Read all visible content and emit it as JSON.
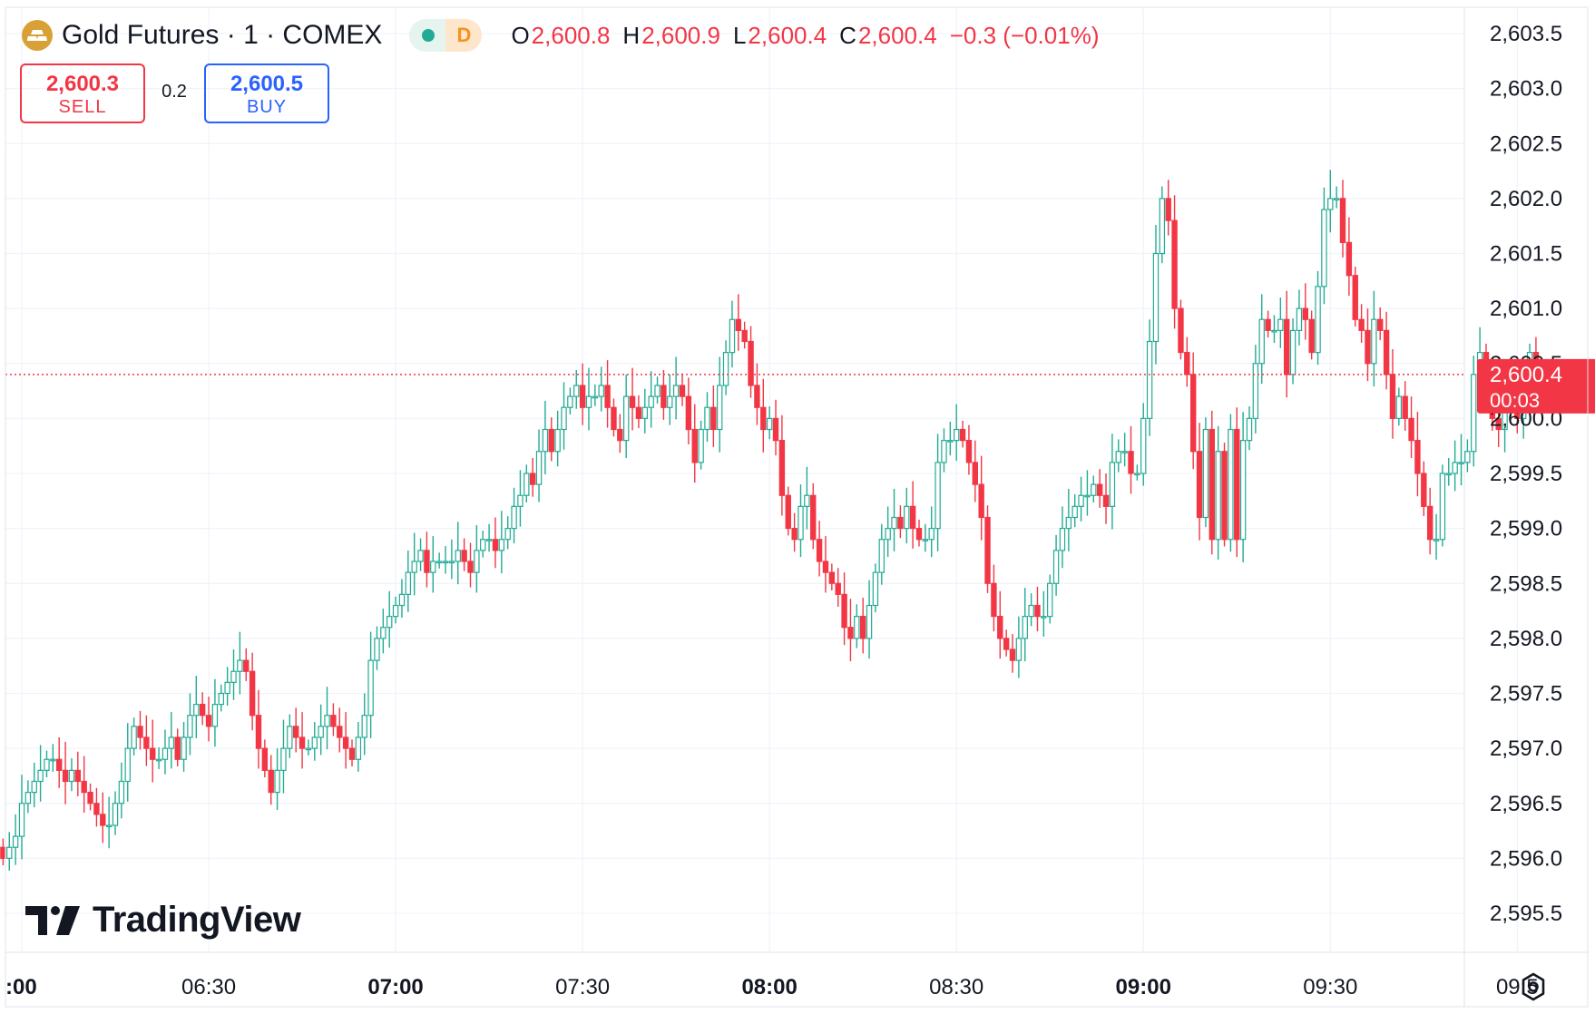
{
  "header": {
    "symbol_title": "Gold Futures · 1 · COMEX",
    "interval_badge": "D",
    "ohlc": [
      {
        "key": "O",
        "value": "2,600.8"
      },
      {
        "key": "H",
        "value": "2,600.9"
      },
      {
        "key": "L",
        "value": "2,600.4"
      },
      {
        "key": "C",
        "value": "2,600.4"
      },
      {
        "key": "",
        "value": "−0.3 (−0.01%)"
      }
    ]
  },
  "trade": {
    "sell_price": "2,600.3",
    "sell_label": "SELL",
    "spread": "0.2",
    "buy_price": "2,600.5",
    "buy_label": "BUY"
  },
  "last_price": {
    "value": "2,600.4",
    "countdown": "00:03"
  },
  "branding": {
    "logo_text": "TradingView"
  },
  "colors": {
    "up": "#22ab94",
    "down": "#f23645",
    "grid": "#f0f3fa",
    "text": "#131722"
  },
  "chart_data": {
    "type": "candlestick",
    "title": "Gold Futures · 1 · COMEX",
    "interval_minutes": 1,
    "x_ticks": [
      {
        "label": ":00",
        "time": "06:00",
        "bold": true
      },
      {
        "label": "06:30",
        "time": "06:30",
        "bold": false
      },
      {
        "label": "07:00",
        "time": "07:00",
        "bold": true
      },
      {
        "label": "07:30",
        "time": "07:30",
        "bold": false
      },
      {
        "label": "08:00",
        "time": "08:00",
        "bold": true
      },
      {
        "label": "08:30",
        "time": "08:30",
        "bold": false
      },
      {
        "label": "09:00",
        "time": "09:00",
        "bold": true
      },
      {
        "label": "09:30",
        "time": "09:30",
        "bold": false
      },
      {
        "label": "09:5",
        "time": "10:00",
        "bold": false
      }
    ],
    "y_ticks": [
      2603.5,
      2603.0,
      2602.5,
      2602.0,
      2601.5,
      2601.0,
      2600.5,
      2600.0,
      2599.5,
      2599.0,
      2598.5,
      2598.0,
      2597.5,
      2597.0,
      2596.5,
      2596.0,
      2595.5
    ],
    "ylim": [
      2595.5,
      2603.5
    ],
    "grid": true,
    "last_price": 2600.4,
    "closes": [
      2596.0,
      2596.1,
      2596.2,
      2596.5,
      2596.6,
      2596.7,
      2596.8,
      2596.9,
      2596.9,
      2596.8,
      2596.7,
      2596.8,
      2596.7,
      2596.6,
      2596.5,
      2596.4,
      2596.3,
      2596.3,
      2596.5,
      2596.7,
      2597.0,
      2597.2,
      2597.1,
      2597.0,
      2596.9,
      2596.9,
      2597.0,
      2597.1,
      2596.9,
      2597.1,
      2597.3,
      2597.4,
      2597.3,
      2597.2,
      2597.4,
      2597.5,
      2597.6,
      2597.7,
      2597.8,
      2597.7,
      2597.3,
      2597.0,
      2596.8,
      2596.6,
      2596.8,
      2597.0,
      2597.2,
      2597.1,
      2597.0,
      2597.0,
      2597.1,
      2597.2,
      2597.3,
      2597.2,
      2597.1,
      2597.0,
      2596.9,
      2597.1,
      2597.3,
      2597.8,
      2598.0,
      2598.1,
      2598.2,
      2598.3,
      2598.4,
      2598.6,
      2598.7,
      2598.8,
      2598.6,
      2598.7,
      2598.7,
      2598.7,
      2598.7,
      2598.8,
      2598.7,
      2598.6,
      2598.8,
      2598.9,
      2598.9,
      2598.8,
      2598.9,
      2599.0,
      2599.2,
      2599.3,
      2599.5,
      2599.4,
      2599.7,
      2599.9,
      2599.7,
      2599.9,
      2600.1,
      2600.2,
      2600.3,
      2600.1,
      2600.2,
      2600.2,
      2600.3,
      2600.1,
      2599.9,
      2599.8,
      2600.2,
      2600.1,
      2600.0,
      2600.1,
      2600.2,
      2600.3,
      2600.1,
      2600.2,
      2600.3,
      2600.2,
      2599.9,
      2599.6,
      2599.9,
      2600.1,
      2599.9,
      2600.3,
      2600.6,
      2600.9,
      2600.8,
      2600.7,
      2600.3,
      2600.1,
      2599.9,
      2600.0,
      2599.8,
      2599.3,
      2599.0,
      2598.9,
      2599.2,
      2599.3,
      2598.9,
      2598.7,
      2598.6,
      2598.5,
      2598.4,
      2598.1,
      2598.0,
      2598.2,
      2598.0,
      2598.3,
      2598.6,
      2598.9,
      2599.0,
      2599.1,
      2599.0,
      2599.2,
      2599.0,
      2598.9,
      2598.9,
      2599.0,
      2599.6,
      2599.8,
      2599.8,
      2599.9,
      2599.8,
      2599.6,
      2599.4,
      2599.1,
      2598.5,
      2598.2,
      2598.0,
      2597.9,
      2597.8,
      2598.0,
      2598.2,
      2598.3,
      2598.2,
      2598.2,
      2598.5,
      2598.8,
      2599.0,
      2599.1,
      2599.2,
      2599.3,
      2599.3,
      2599.4,
      2599.3,
      2599.2,
      2599.6,
      2599.7,
      2599.7,
      2599.5,
      2599.5,
      2600.0,
      2600.7,
      2601.5,
      2602.0,
      2601.8,
      2601.0,
      2600.6,
      2600.4,
      2599.7,
      2599.1,
      2599.9,
      2598.9,
      2599.7,
      2598.9,
      2599.9,
      2598.9,
      2599.8,
      2600.0,
      2600.5,
      2600.9,
      2600.8,
      2600.8,
      2600.9,
      2600.4,
      2600.8,
      2601.0,
      2600.9,
      2600.6,
      2601.2,
      2601.9,
      2602.0,
      2602.0,
      2601.6,
      2601.3,
      2600.9,
      2600.8,
      2600.5,
      2600.9,
      2600.8,
      2600.4,
      2600.0,
      2600.2,
      2600.0,
      2599.8,
      2599.5,
      2599.2,
      2598.9,
      2598.9,
      2599.5,
      2599.5,
      2599.6,
      2599.6,
      2599.7,
      2600.4,
      2600.6,
      2600.3,
      2600.0,
      2599.9,
      2600.1,
      2600.1,
      2600.0,
      2600.3,
      2600.6,
      2600.4
    ],
    "x_first_time": "05:57"
  }
}
